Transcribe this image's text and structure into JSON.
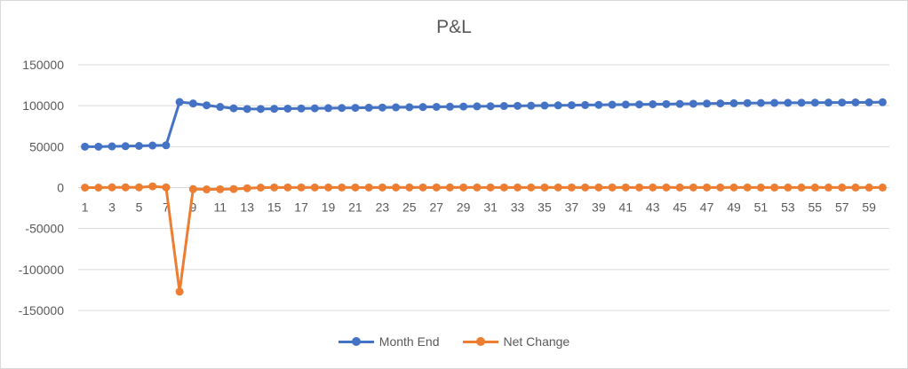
{
  "chart_data": {
    "type": "line",
    "title": "P&L",
    "xlabel": "",
    "ylabel": "",
    "ylim": [
      -150000,
      150000
    ],
    "y_ticks": [
      150000,
      100000,
      50000,
      0,
      -50000,
      -100000,
      -150000
    ],
    "x": [
      1,
      2,
      3,
      4,
      5,
      6,
      7,
      8,
      9,
      10,
      11,
      12,
      13,
      14,
      15,
      16,
      17,
      18,
      19,
      20,
      21,
      22,
      23,
      24,
      25,
      26,
      27,
      28,
      29,
      30,
      31,
      32,
      33,
      34,
      35,
      36,
      37,
      38,
      39,
      40,
      41,
      42,
      43,
      44,
      45,
      46,
      47,
      48,
      49,
      50,
      51,
      52,
      53,
      54,
      55,
      56,
      57,
      58,
      59,
      60
    ],
    "x_tick_labels": [
      1,
      3,
      5,
      7,
      9,
      11,
      13,
      15,
      17,
      19,
      21,
      23,
      25,
      27,
      29,
      31,
      33,
      35,
      37,
      39,
      41,
      43,
      45,
      47,
      49,
      51,
      53,
      55,
      57,
      59
    ],
    "grid": true,
    "legend_position": "bottom",
    "series": [
      {
        "name": "Month End",
        "color": "#4472C4",
        "values": [
          50000,
          50000,
          50300,
          50600,
          50900,
          51400,
          51700,
          104500,
          102700,
          100500,
          98500,
          96800,
          96000,
          96000,
          96200,
          96400,
          96600,
          96800,
          97000,
          97200,
          97400,
          97600,
          97800,
          98000,
          98200,
          98400,
          98600,
          98800,
          99000,
          99200,
          99400,
          99600,
          99800,
          100000,
          100200,
          100400,
          100600,
          100800,
          101000,
          101200,
          101400,
          101600,
          101800,
          102000,
          102200,
          102400,
          102600,
          102800,
          103000,
          103200,
          103300,
          103400,
          103500,
          103600,
          103700,
          103800,
          103900,
          104000,
          104100,
          104200
        ]
      },
      {
        "name": "Net Change",
        "color": "#ED7D31",
        "values": [
          0,
          0,
          300,
          300,
          300,
          1500,
          300,
          -127000,
          -1800,
          -2200,
          -2000,
          -1700,
          -800,
          0,
          200,
          200,
          200,
          200,
          200,
          200,
          200,
          200,
          200,
          200,
          200,
          200,
          200,
          200,
          200,
          200,
          200,
          200,
          200,
          200,
          200,
          200,
          200,
          200,
          200,
          200,
          200,
          200,
          200,
          200,
          200,
          200,
          200,
          200,
          200,
          200,
          100,
          100,
          100,
          100,
          100,
          100,
          100,
          100,
          100,
          100
        ]
      }
    ]
  }
}
